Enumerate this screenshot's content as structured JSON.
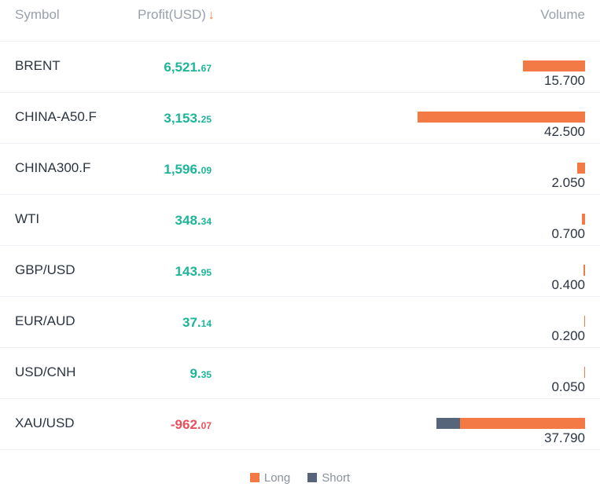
{
  "header": {
    "symbol": "Symbol",
    "profit": "Profit(USD)",
    "sort_arrow": "↓",
    "volume": "Volume"
  },
  "rows": [
    {
      "symbol": "BRENT",
      "profit_int": "6,521.",
      "profit_dec": "67",
      "sign": "pos",
      "volume": "15.700",
      "long": 15.7,
      "short": 0
    },
    {
      "symbol": "CHINA-A50.F",
      "profit_int": "3,153.",
      "profit_dec": "25",
      "sign": "pos",
      "volume": "42.500",
      "long": 42.5,
      "short": 0
    },
    {
      "symbol": "CHINA300.F",
      "profit_int": "1,596.",
      "profit_dec": "09",
      "sign": "pos",
      "volume": "2.050",
      "long": 2.05,
      "short": 0
    },
    {
      "symbol": "WTI",
      "profit_int": "348.",
      "profit_dec": "34",
      "sign": "pos",
      "volume": "0.700",
      "long": 0.7,
      "short": 0
    },
    {
      "symbol": "GBP/USD",
      "profit_int": "143.",
      "profit_dec": "95",
      "sign": "pos",
      "volume": "0.400",
      "long": 0.4,
      "short": 0
    },
    {
      "symbol": "EUR/AUD",
      "profit_int": "37.",
      "profit_dec": "14",
      "sign": "pos",
      "volume": "0.200",
      "long": 0.2,
      "short": 0
    },
    {
      "symbol": "USD/CNH",
      "profit_int": "9.",
      "profit_dec": "35",
      "sign": "pos",
      "volume": "0.050",
      "long": 0.05,
      "short": 0
    },
    {
      "symbol": "XAU/USD",
      "profit_int": "-962.",
      "profit_dec": "07",
      "sign": "neg",
      "volume": "37.790",
      "long": 31.79,
      "short": 6.0
    }
  ],
  "legend": {
    "long_label": "Long",
    "short_label": "Short",
    "long_color": "#f47a45",
    "short_color": "#56657a"
  },
  "colors": {
    "positive": "#1db598",
    "negative": "#e94f5c"
  }
}
